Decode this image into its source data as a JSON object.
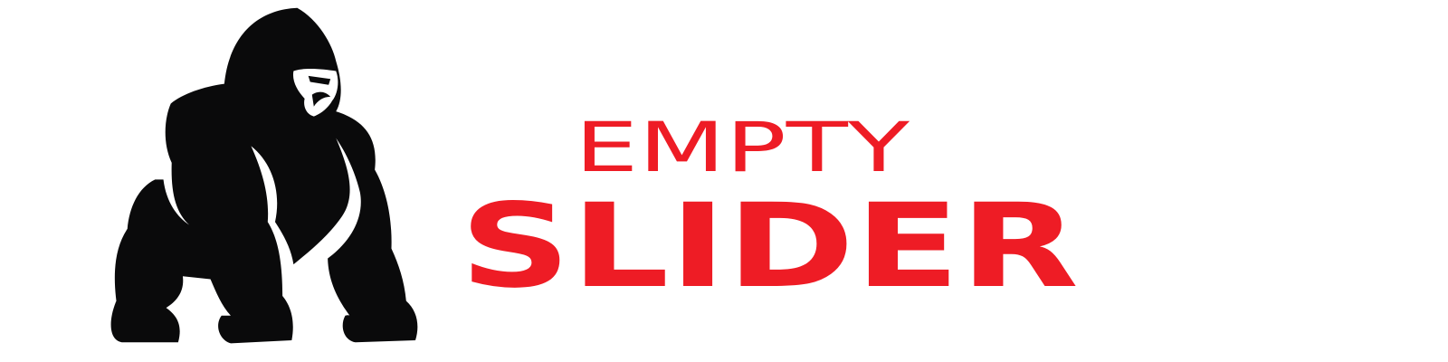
{
  "logo": {
    "line1": "EMPTY",
    "line2": "SLIDER"
  }
}
